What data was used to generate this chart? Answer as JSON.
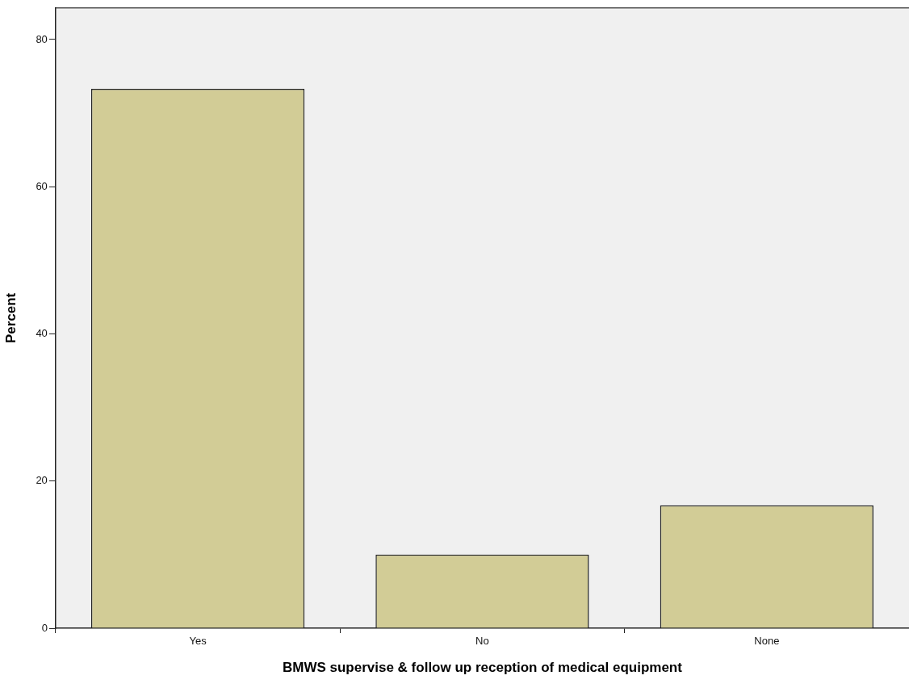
{
  "chart_data": {
    "type": "bar",
    "xlabel": "BMWS supervise & follow up reception of medical equipment",
    "ylabel": "Percent",
    "categories": [
      "Yes",
      "No",
      "None"
    ],
    "values": [
      73.3,
      10.0,
      16.7
    ],
    "color": "#d2cc96",
    "ylim": [
      0,
      84.3
    ],
    "yticks": [
      0,
      20,
      40,
      60,
      80
    ],
    "grid": false,
    "legend": false
  }
}
